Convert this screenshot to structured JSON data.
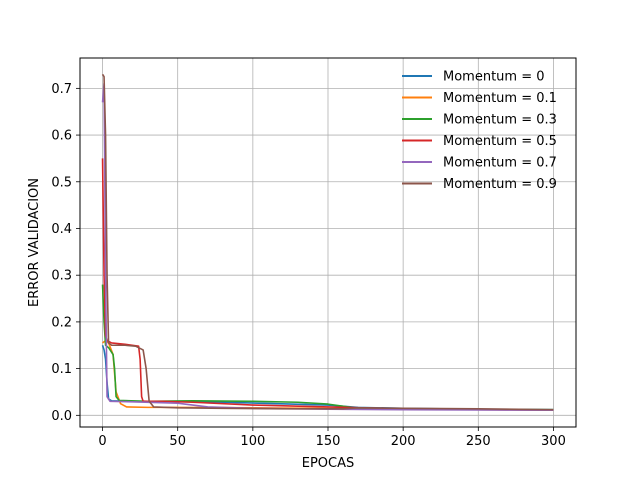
{
  "chart_data": {
    "type": "line",
    "title": "",
    "xlabel": "EPOCAS",
    "ylabel": "ERROR VALIDACION",
    "xlim": [
      -15,
      315
    ],
    "ylim": [
      -0.025,
      0.765
    ],
    "xticks": [
      0,
      50,
      100,
      150,
      200,
      250,
      300
    ],
    "yticks": [
      0.0,
      0.1,
      0.2,
      0.3,
      0.4,
      0.5,
      0.6,
      0.7
    ],
    "ytick_labels": [
      "0.0",
      "0.1",
      "0.2",
      "0.3",
      "0.4",
      "0.5",
      "0.6",
      "0.7"
    ],
    "grid": true,
    "legend": "top-right",
    "series": [
      {
        "name": "Momentum = 0",
        "color": "#1f77b4",
        "points": [
          [
            0,
            0.15
          ],
          [
            1,
            0.14
          ],
          [
            2,
            0.12
          ],
          [
            3,
            0.07
          ],
          [
            4,
            0.035
          ],
          [
            6,
            0.031
          ],
          [
            20,
            0.03
          ],
          [
            50,
            0.03
          ],
          [
            80,
            0.028
          ],
          [
            150,
            0.022
          ],
          [
            170,
            0.017
          ],
          [
            200,
            0.015
          ],
          [
            250,
            0.013
          ],
          [
            300,
            0.012
          ]
        ]
      },
      {
        "name": "Momentum = 0.1",
        "color": "#ff7f0e",
        "points": [
          [
            0,
            0.155
          ],
          [
            2,
            0.16
          ],
          [
            4,
            0.155
          ],
          [
            7,
            0.13
          ],
          [
            9,
            0.05
          ],
          [
            12,
            0.025
          ],
          [
            16,
            0.018
          ],
          [
            30,
            0.017
          ],
          [
            50,
            0.017
          ],
          [
            100,
            0.016
          ],
          [
            200,
            0.013
          ],
          [
            300,
            0.011
          ]
        ]
      },
      {
        "name": "Momentum = 0.3",
        "color": "#2ca02c",
        "points": [
          [
            0,
            0.28
          ],
          [
            1,
            0.2
          ],
          [
            2,
            0.15
          ],
          [
            4,
            0.145
          ],
          [
            7,
            0.13
          ],
          [
            8,
            0.1
          ],
          [
            9,
            0.04
          ],
          [
            11,
            0.032
          ],
          [
            30,
            0.03
          ],
          [
            60,
            0.031
          ],
          [
            100,
            0.03
          ],
          [
            130,
            0.028
          ],
          [
            150,
            0.024
          ],
          [
            170,
            0.015
          ],
          [
            200,
            0.013
          ],
          [
            300,
            0.012
          ]
        ]
      },
      {
        "name": "Momentum = 0.5",
        "color": "#d62728",
        "points": [
          [
            0,
            0.55
          ],
          [
            1,
            0.3
          ],
          [
            2,
            0.17
          ],
          [
            3,
            0.16
          ],
          [
            6,
            0.155
          ],
          [
            15,
            0.152
          ],
          [
            24,
            0.148
          ],
          [
            25,
            0.12
          ],
          [
            26,
            0.04
          ],
          [
            27,
            0.03
          ],
          [
            40,
            0.03
          ],
          [
            60,
            0.028
          ],
          [
            100,
            0.022
          ],
          [
            150,
            0.018
          ],
          [
            200,
            0.014
          ],
          [
            300,
            0.011
          ]
        ]
      },
      {
        "name": "Momentum = 0.7",
        "color": "#9467bd",
        "points": [
          [
            0,
            0.67
          ],
          [
            1,
            0.71
          ],
          [
            2,
            0.3
          ],
          [
            3,
            0.04
          ],
          [
            5,
            0.03
          ],
          [
            20,
            0.029
          ],
          [
            50,
            0.026
          ],
          [
            70,
            0.018
          ],
          [
            100,
            0.015
          ],
          [
            150,
            0.013
          ],
          [
            200,
            0.012
          ],
          [
            300,
            0.011
          ]
        ]
      },
      {
        "name": "Momentum = 0.9",
        "color": "#8c564b",
        "points": [
          [
            0,
            0.73
          ],
          [
            1,
            0.725
          ],
          [
            2,
            0.6
          ],
          [
            3,
            0.3
          ],
          [
            4,
            0.155
          ],
          [
            6,
            0.15
          ],
          [
            15,
            0.15
          ],
          [
            22,
            0.148
          ],
          [
            27,
            0.14
          ],
          [
            29,
            0.1
          ],
          [
            31,
            0.03
          ],
          [
            34,
            0.018
          ],
          [
            50,
            0.016
          ],
          [
            80,
            0.015
          ],
          [
            120,
            0.014
          ],
          [
            160,
            0.014
          ],
          [
            170,
            0.016
          ],
          [
            200,
            0.015
          ],
          [
            250,
            0.014
          ],
          [
            300,
            0.012
          ]
        ]
      }
    ]
  }
}
